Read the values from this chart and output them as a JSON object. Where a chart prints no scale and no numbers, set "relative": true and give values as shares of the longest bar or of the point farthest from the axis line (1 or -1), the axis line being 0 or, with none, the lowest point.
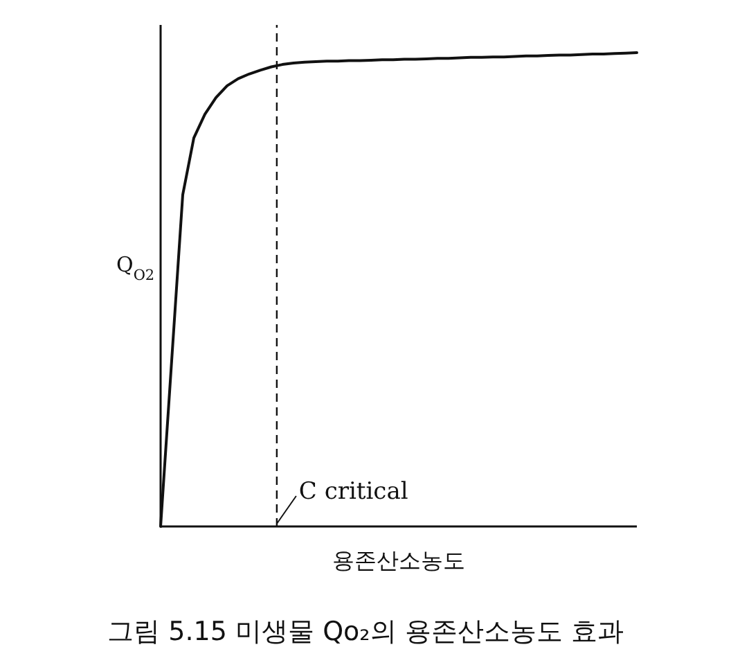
{
  "chart_data": {
    "type": "line",
    "relative": true,
    "xlabel": "용존산소농도",
    "ylabel": "Q$_{O2}$",
    "categories": [
      null,
      null,
      null,
      null,
      null,
      null,
      null,
      null,
      null,
      null,
      null,
      null,
      null,
      null,
      null,
      null,
      null,
      null,
      null,
      null,
      null,
      null,
      null,
      null,
      null,
      null,
      null,
      null,
      null,
      null,
      null,
      null,
      null,
      null,
      null,
      null,
      null,
      null,
      null,
      null,
      null,
      null,
      null,
      null
    ],
    "values": [
      0,
      0.35,
      0.7,
      0.82,
      0.87,
      0.905,
      0.93,
      0.945,
      0.955,
      0.963,
      0.97,
      0.975,
      0.978,
      0.98,
      0.981,
      0.982,
      0.982,
      0.983,
      0.983,
      0.984,
      0.985,
      0.985,
      0.986,
      0.986,
      0.987,
      0.988,
      0.988,
      0.989,
      0.99,
      0.99,
      0.991,
      0.991,
      0.992,
      0.993,
      0.993,
      0.994,
      0.995,
      0.995,
      0.996,
      0.997,
      0.997,
      0.998,
      0.999,
      1
    ],
    "color": "#111111",
    "annotations": [
      "C critical",
      "그림 5.15 미생물 Qo₂의 용존산소농도 효과"
    ]
  }
}
